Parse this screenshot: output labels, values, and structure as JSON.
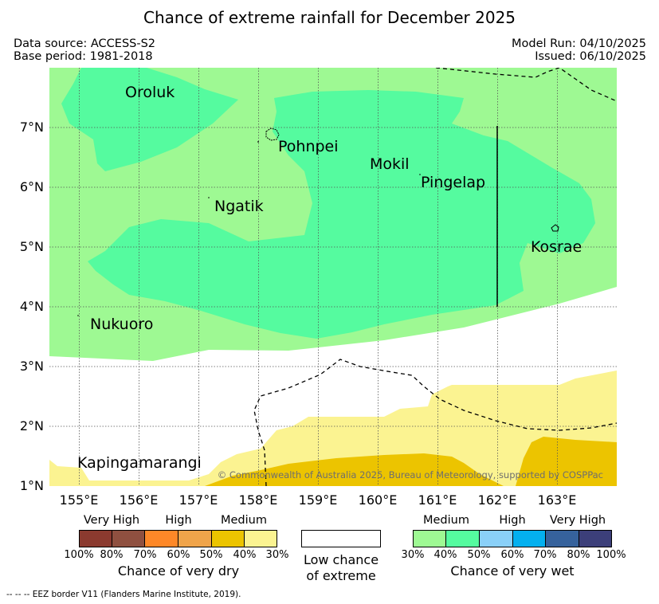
{
  "title": "Chance of extreme rainfall for December 2025",
  "meta": {
    "data_source": "Data source: ACCESS-S2",
    "base_period": "Base period: 1981-2018",
    "model_run": "Model Run: 04/10/2025",
    "issued": "Issued: 06/10/2025"
  },
  "map": {
    "lon_range": [
      154.5,
      164.0
    ],
    "lat_range": [
      1.0,
      8.0
    ],
    "x_ticks": [
      "155°E",
      "156°E",
      "157°E",
      "158°E",
      "159°E",
      "160°E",
      "161°E",
      "162°E",
      "163°E"
    ],
    "y_ticks": [
      "1°N",
      "2°N",
      "3°N",
      "4°N",
      "5°N",
      "6°N",
      "7°N"
    ],
    "places": [
      "Oroluk",
      "Pohnpei",
      "Mokil",
      "Pingelap",
      "Ngatik",
      "Kosrae",
      "Nukuoro",
      "Kapingamarangi"
    ],
    "copyright": "© Commonwealth of Australia 2025, Bureau of Meteorology, supported by COSPPac"
  },
  "legend_dry": {
    "headers": [
      "Very High",
      "High",
      "Medium"
    ],
    "ticks": [
      "100%",
      "80%",
      "70%",
      "60%",
      "50%",
      "40%",
      "30%"
    ],
    "colors": [
      "#8b3a2f",
      "#8f5040",
      "#fe8828",
      "#f0a44a",
      "#ecc400",
      "#fbf391"
    ],
    "caption": "Chance of very dry"
  },
  "legend_low": {
    "caption_line1": "Low chance",
    "caption_line2": "of extreme",
    "color": "#ffffff"
  },
  "legend_wet": {
    "headers": [
      "Medium",
      "High",
      "Very High"
    ],
    "ticks": [
      "30%",
      "40%",
      "50%",
      "60%",
      "70%",
      "80%",
      "100%"
    ],
    "colors": [
      "#9ef993",
      "#55fb9f",
      "#8ad0f8",
      "#04b0ef",
      "#36629c",
      "#3c3f7a"
    ],
    "caption": "Chance of very wet"
  },
  "footer": "--  --  -- EEZ border V11 (Flanders Marine Institute, 2019)."
}
